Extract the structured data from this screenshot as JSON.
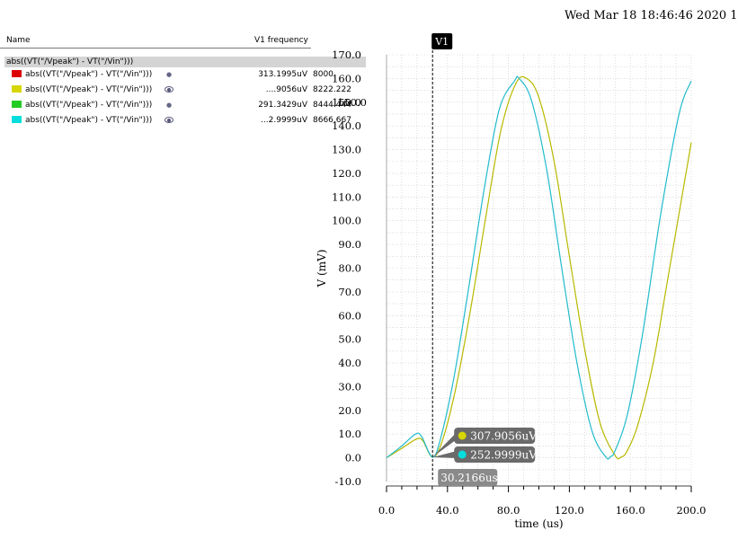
{
  "header": {
    "datetime": "Wed Mar 18 18:46:46 2020   1"
  },
  "legend": {
    "name_header": "Name",
    "value_header": "V1 frequency",
    "group_label": "abs((VT(\"/Vpeak\") - VT(\"/Vin\")))",
    "rows": [
      {
        "label": "abs((VT(\"/Vpeak\") - VT(\"/Vin\")))",
        "color": "#dd0000",
        "visible_icon": "dot",
        "value": "313.1995uV",
        "freq": "8000"
      },
      {
        "label": "abs((VT(\"/Vpeak\") - VT(\"/Vin\")))",
        "color": "#d6d600",
        "visible_icon": "eye-icon",
        "value": "....9056uV",
        "freq": "8222.222"
      },
      {
        "label": "abs((VT(\"/Vpeak\") - VT(\"/Vin\")))",
        "color": "#22cc22",
        "visible_icon": "dot",
        "value": "291.3429uV",
        "freq": "8444.444"
      },
      {
        "label": "abs((VT(\"/Vpeak\") - VT(\"/Vin\")))",
        "color": "#00dddd",
        "visible_icon": "eye-icon",
        "value": "...2.9999uV",
        "freq": "8666.667"
      }
    ]
  },
  "chart_data": {
    "type": "line",
    "xlabel": "time (us)",
    "ylabel": "V (mV)",
    "xlim": [
      0,
      200
    ],
    "ylim": [
      -10,
      170
    ],
    "x_ticks": [
      "0.0",
      "40.0",
      "80.0",
      "120.0",
      "160.0",
      "200.0"
    ],
    "y_ticks": [
      "-10.0",
      "0.0",
      "10.0",
      "20.0",
      "30.0",
      "40.0",
      "50.0",
      "60.0",
      "70.0",
      "80.0",
      "90.0",
      "100.0",
      "110.0",
      "120.0",
      "130.0",
      "140.0",
      "150.0",
      "160.0",
      "170.0"
    ],
    "grid": true,
    "series": [
      {
        "color": "#b8b800",
        "x": [
          0,
          10,
          20,
          24,
          30,
          36,
          45,
          55,
          65,
          75,
          85,
          92,
          100,
          110,
          120,
          130,
          140,
          150,
          154,
          158,
          165,
          175,
          185,
          200
        ],
        "y": [
          0,
          4,
          8,
          7,
          0.3,
          6,
          28,
          62,
          101,
          138,
          158,
          160,
          152,
          125,
          85,
          46,
          15,
          1,
          0.3,
          3,
          14,
          40,
          77,
          133
        ]
      },
      {
        "color": "#22bbcc",
        "x": [
          0,
          10,
          19,
          23,
          30,
          35,
          44,
          54,
          64,
          74,
          84,
          87,
          95,
          105,
          115,
          125,
          135,
          144,
          147,
          150,
          158,
          168,
          180,
          192,
          200
        ],
        "y": [
          0,
          5,
          10,
          9,
          0.3,
          7,
          33,
          72,
          113,
          147,
          159,
          160,
          151,
          122,
          80,
          40,
          11,
          0.3,
          0.5,
          3,
          18,
          52,
          103,
          145,
          159
        ]
      }
    ],
    "cursor": {
      "label": "V1",
      "x": 30.2166,
      "x_label": "30.2166us"
    },
    "markers": [
      {
        "color": "#d6d600",
        "value": "307.9056uV",
        "y": 0.31
      },
      {
        "color": "#00dddd",
        "value": "252.9999uV",
        "y": 0.25
      }
    ],
    "partial_tick_overlay": "150.0"
  }
}
